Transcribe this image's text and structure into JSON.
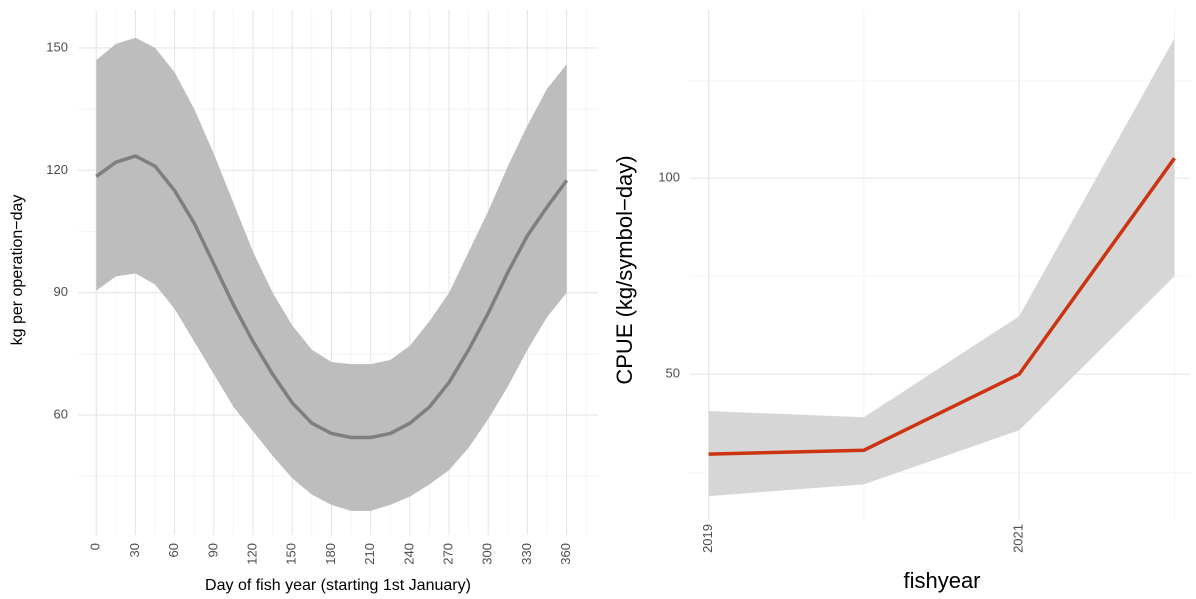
{
  "chart_data": [
    {
      "type": "line",
      "x_label": "Day of fish year (starting 1st January)",
      "y_label": "kg per operation−day",
      "x": [
        0,
        15,
        30,
        45,
        60,
        75,
        90,
        105,
        120,
        135,
        150,
        165,
        180,
        195,
        210,
        225,
        240,
        255,
        270,
        285,
        300,
        315,
        330,
        345,
        360
      ],
      "values": [
        118.5,
        122,
        123.5,
        121,
        115,
        107,
        97,
        87,
        78,
        70,
        63,
        58,
        55.5,
        54.5,
        54.5,
        55.5,
        58,
        62,
        68,
        76,
        85,
        95,
        104,
        111,
        117.5
      ],
      "upper": [
        147,
        151,
        152.5,
        150,
        144,
        135,
        124,
        112,
        100,
        90,
        82,
        76,
        73,
        72.5,
        72.5,
        73.5,
        77,
        83,
        90,
        100,
        110,
        121,
        131,
        140,
        146
      ],
      "lower": [
        90.5,
        94,
        94.7,
        92,
        86,
        78,
        70,
        62,
        56,
        50,
        44.5,
        40.5,
        38,
        36.5,
        36.5,
        38,
        40,
        43,
        46.5,
        52,
        59,
        67,
        76,
        84,
        90
      ],
      "color": "#7f7f7f",
      "band_color": "#bdbdbd",
      "xlim": [
        -14,
        384
      ],
      "ylim": [
        30.6,
        159.3
      ],
      "xticks": [
        0,
        30,
        60,
        90,
        120,
        150,
        180,
        210,
        240,
        270,
        300,
        330,
        360
      ],
      "minor_xticks": [
        15,
        45,
        75,
        105,
        135,
        165,
        195,
        225,
        255,
        285,
        315,
        345,
        375
      ],
      "yticks": [
        60,
        90,
        120,
        150
      ],
      "minor_yticks": [
        45,
        75,
        105,
        135
      ],
      "grid": true,
      "x_tick_rotation": true
    },
    {
      "type": "line",
      "x_label": "fishyear",
      "y_label": "CPUE (kg/symbol−day)",
      "x": [
        2019,
        2020,
        2021,
        2022
      ],
      "values": [
        29.6,
        30.6,
        50,
        105.1
      ],
      "upper": [
        40.6,
        39,
        64.8,
        135.7
      ],
      "lower": [
        18.9,
        21.9,
        35.7,
        75
      ],
      "color": "#cc3311",
      "band_color": "#d6d6d6",
      "xlim": [
        2018.88,
        2022.1
      ],
      "ylim": [
        12.8,
        142.9
      ],
      "xticks": [
        2019,
        2021
      ],
      "minor_xticks": [
        2020,
        2022
      ],
      "yticks": [
        50,
        100
      ],
      "minor_yticks": [
        25,
        75,
        125
      ],
      "grid": true,
      "x_tick_rotation": true
    }
  ]
}
